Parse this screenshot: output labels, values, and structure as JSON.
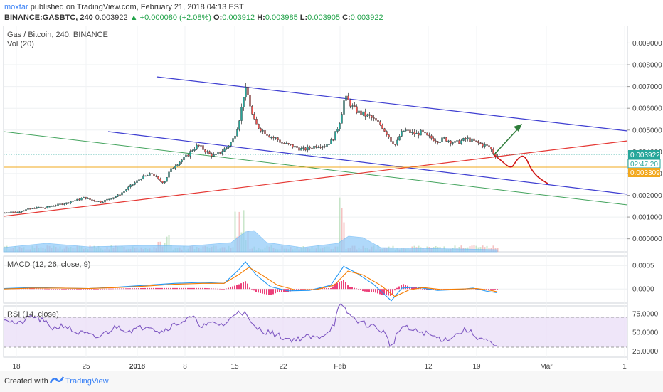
{
  "header": {
    "user": "moxtar",
    "published": "published on TradingView.com, February 21, 2018 04:13 EST",
    "symbol": "BINANCE:GASBTC, 240",
    "last": "0.003922",
    "change": "▲ +0.000080 (+2.08%)",
    "o_label": "O:",
    "o": "0.003912",
    "h_label": "H:",
    "h": "0.003985",
    "l_label": "L:",
    "l": "0.003905",
    "c_label": "C:",
    "c": "0.003922"
  },
  "legend": {
    "main": "Gas / Bitcoin, 240, BINANCE",
    "vol": "Vol (20)",
    "macd": "MACD (12, 26, close, 9)",
    "rsi": "RSI (14, close)"
  },
  "price_tags": {
    "last": "0.003922",
    "countdown": "02:47:20",
    "hline": "0.003309"
  },
  "footer": {
    "created": "Created with",
    "brand": "TradingView"
  },
  "colors": {
    "candle_up": "#26a69a",
    "candle_down": "#ef5350",
    "channel": "#3f3fd1",
    "support": "#e53935",
    "green_line": "#43a35d",
    "hline": "#f2a81d",
    "arrow_up": "#2e7d3a",
    "arrow_down": "#d01515",
    "macd": "#2196f3",
    "signal": "#f57c00",
    "hist": "#e91e63",
    "rsi": "#7e57c2",
    "volume": "#90caf9"
  },
  "chart_data": {
    "type": "candlestick",
    "xaxis_ticks": [
      "18",
      "25",
      "2018",
      "8",
      "15",
      "22",
      "Feb",
      "12",
      "19",
      "Mar",
      "1"
    ],
    "price_axis": [
      "0.009000",
      "0.008000",
      "0.007000",
      "0.006000",
      "0.005000",
      "0.004000",
      "0.003000",
      "0.002000",
      "0.001000",
      "0.000000"
    ],
    "price_range": [
      -0.0006,
      0.0098
    ],
    "price_series": [
      [
        0,
        0.0012
      ],
      [
        8,
        0.00125
      ],
      [
        16,
        0.0012
      ],
      [
        24,
        0.0013
      ],
      [
        32,
        0.00135
      ],
      [
        40,
        0.0014
      ],
      [
        48,
        0.00145
      ],
      [
        56,
        0.0014
      ],
      [
        64,
        0.0015
      ],
      [
        72,
        0.00155
      ],
      [
        80,
        0.0016
      ],
      [
        88,
        0.00165
      ],
      [
        96,
        0.00175
      ],
      [
        104,
        0.0018
      ],
      [
        112,
        0.0019
      ],
      [
        120,
        0.0018
      ],
      [
        128,
        0.00175
      ],
      [
        136,
        0.0017
      ],
      [
        144,
        0.0018
      ],
      [
        152,
        0.0019
      ],
      [
        160,
        0.002
      ],
      [
        168,
        0.0022
      ],
      [
        176,
        0.0024
      ],
      [
        184,
        0.0026
      ],
      [
        192,
        0.0028
      ],
      [
        200,
        0.0029
      ],
      [
        208,
        0.003
      ],
      [
        216,
        0.0027
      ],
      [
        224,
        0.0026
      ],
      [
        232,
        0.0031
      ],
      [
        240,
        0.0034
      ],
      [
        248,
        0.0036
      ],
      [
        256,
        0.0038
      ],
      [
        264,
        0.0041
      ],
      [
        272,
        0.0043
      ],
      [
        280,
        0.0041
      ],
      [
        288,
        0.0039
      ],
      [
        296,
        0.0038
      ],
      [
        304,
        0.004
      ],
      [
        312,
        0.0042
      ],
      [
        320,
        0.0045
      ],
      [
        326,
        0.005
      ],
      [
        332,
        0.0058
      ],
      [
        336,
        0.0066
      ],
      [
        340,
        0.0069
      ],
      [
        344,
        0.0063
      ],
      [
        348,
        0.0057
      ],
      [
        352,
        0.0053
      ],
      [
        358,
        0.0051
      ],
      [
        366,
        0.0049
      ],
      [
        374,
        0.0047
      ],
      [
        382,
        0.0046
      ],
      [
        390,
        0.0044
      ],
      [
        400,
        0.0043
      ],
      [
        410,
        0.0042
      ],
      [
        420,
        0.0041
      ],
      [
        430,
        0.0042
      ],
      [
        440,
        0.0043
      ],
      [
        450,
        0.0043
      ],
      [
        460,
        0.0045
      ],
      [
        466,
        0.0049
      ],
      [
        472,
        0.0055
      ],
      [
        478,
        0.0065
      ],
      [
        484,
        0.0063
      ],
      [
        490,
        0.006
      ],
      [
        498,
        0.0058
      ],
      [
        506,
        0.0057
      ],
      [
        514,
        0.0056
      ],
      [
        522,
        0.0054
      ],
      [
        530,
        0.0052
      ],
      [
        538,
        0.0048
      ],
      [
        544,
        0.0045
      ],
      [
        550,
        0.0043
      ],
      [
        556,
        0.0048
      ],
      [
        562,
        0.005
      ],
      [
        570,
        0.0049
      ],
      [
        578,
        0.0048
      ],
      [
        586,
        0.0049
      ],
      [
        594,
        0.0047
      ],
      [
        602,
        0.0046
      ],
      [
        610,
        0.0045
      ],
      [
        618,
        0.0046
      ],
      [
        626,
        0.0045
      ],
      [
        634,
        0.0044
      ],
      [
        642,
        0.0045
      ],
      [
        650,
        0.0046
      ],
      [
        658,
        0.0045
      ],
      [
        666,
        0.0044
      ],
      [
        674,
        0.0043
      ],
      [
        682,
        0.0042
      ],
      [
        688,
        0.0039
      ],
      [
        694,
        0.0038
      ]
    ],
    "rsi_axis": [
      "75.0000",
      "50.0000",
      "25.0000"
    ],
    "rsi_band": [
      30,
      70
    ],
    "rsi_series": [
      [
        0,
        70
      ],
      [
        20,
        60
      ],
      [
        40,
        72
      ],
      [
        55,
        65
      ],
      [
        70,
        55
      ],
      [
        85,
        60
      ],
      [
        100,
        50
      ],
      [
        115,
        48
      ],
      [
        130,
        42
      ],
      [
        145,
        50
      ],
      [
        160,
        58
      ],
      [
        175,
        52
      ],
      [
        190,
        55
      ],
      [
        205,
        60
      ],
      [
        220,
        50
      ],
      [
        235,
        58
      ],
      [
        250,
        64
      ],
      [
        265,
        70
      ],
      [
        280,
        58
      ],
      [
        295,
        62
      ],
      [
        310,
        60
      ],
      [
        320,
        68
      ],
      [
        330,
        80
      ],
      [
        340,
        74
      ],
      [
        350,
        58
      ],
      [
        365,
        52
      ],
      [
        380,
        48
      ],
      [
        395,
        42
      ],
      [
        410,
        40
      ],
      [
        425,
        44
      ],
      [
        440,
        42
      ],
      [
        455,
        50
      ],
      [
        465,
        62
      ],
      [
        472,
        86
      ],
      [
        480,
        80
      ],
      [
        490,
        70
      ],
      [
        505,
        62
      ],
      [
        520,
        58
      ],
      [
        535,
        50
      ],
      [
        545,
        30
      ],
      [
        552,
        45
      ],
      [
        560,
        58
      ],
      [
        575,
        52
      ],
      [
        590,
        50
      ],
      [
        605,
        44
      ],
      [
        620,
        40
      ],
      [
        635,
        46
      ],
      [
        650,
        54
      ],
      [
        665,
        44
      ],
      [
        680,
        38
      ],
      [
        690,
        30
      ],
      [
        694,
        32
      ]
    ],
    "macd_axis": [
      "0.0005",
      "0.0000"
    ],
    "macd_range": [
      -0.0003,
      0.0007
    ],
    "macd_series": [
      [
        0,
        1e-05
      ],
      [
        40,
        3e-05
      ],
      [
        80,
        2e-05
      ],
      [
        120,
        1e-05
      ],
      [
        160,
        4e-05
      ],
      [
        200,
        8e-05
      ],
      [
        240,
        0.00012
      ],
      [
        280,
        0.00014
      ],
      [
        310,
        0.00012
      ],
      [
        330,
        0.0004
      ],
      [
        340,
        0.00058
      ],
      [
        355,
        0.0003
      ],
      [
        375,
        5e-05
      ],
      [
        400,
        -4e-05
      ],
      [
        430,
        -3e-05
      ],
      [
        460,
        8e-05
      ],
      [
        478,
        0.00048
      ],
      [
        495,
        0.00035
      ],
      [
        520,
        0.0001
      ],
      [
        545,
        -0.00025
      ],
      [
        560,
        2e-05
      ],
      [
        580,
        4e-05
      ],
      [
        610,
        -3e-05
      ],
      [
        640,
        -1e-05
      ],
      [
        660,
        2e-05
      ],
      [
        680,
        -5e-05
      ],
      [
        694,
        -8e-05
      ]
    ],
    "signal_series": [
      [
        0,
        0.0
      ],
      [
        40,
        2e-05
      ],
      [
        80,
        2e-05
      ],
      [
        120,
        1e-05
      ],
      [
        160,
        3e-05
      ],
      [
        200,
        6e-05
      ],
      [
        240,
        0.0001
      ],
      [
        280,
        0.00012
      ],
      [
        310,
        0.00012
      ],
      [
        330,
        0.0003
      ],
      [
        345,
        0.00046
      ],
      [
        365,
        0.00028
      ],
      [
        385,
        8e-05
      ],
      [
        410,
        -2e-05
      ],
      [
        440,
        -1e-05
      ],
      [
        465,
        8e-05
      ],
      [
        484,
        0.00038
      ],
      [
        505,
        0.0003
      ],
      [
        530,
        8e-05
      ],
      [
        550,
        -0.00016
      ],
      [
        570,
        -2e-05
      ],
      [
        590,
        3e-05
      ],
      [
        615,
        -1e-05
      ],
      [
        645,
        0.0
      ],
      [
        665,
        1e-05
      ],
      [
        685,
        -3e-05
      ],
      [
        694,
        -6e-05
      ]
    ]
  }
}
